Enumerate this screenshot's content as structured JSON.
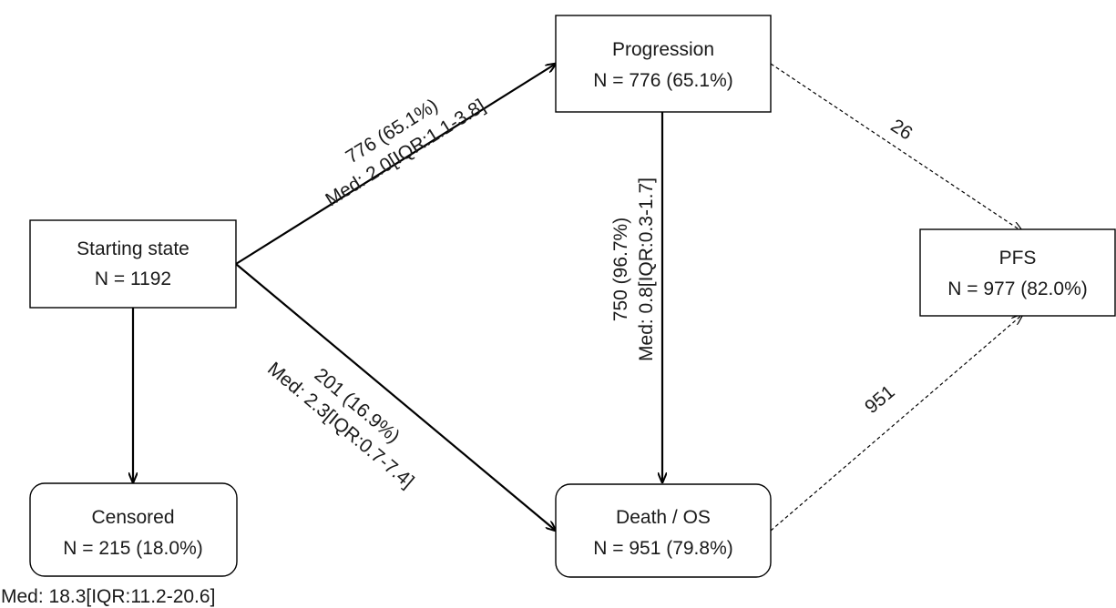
{
  "nodes": {
    "starting": {
      "title": "Starting state",
      "count": "N = 1192"
    },
    "progression": {
      "title": "Progression",
      "count": "N = 776 (65.1%)"
    },
    "pfs": {
      "title": "PFS",
      "count": "N = 977 (82.0%)"
    },
    "censored": {
      "title": "Censored",
      "count": "N = 215 (18.0%)",
      "note": "Med: 18.3[IQR:11.2-20.6]"
    },
    "death": {
      "title": "Death / OS",
      "count": "N = 951 (79.8%)"
    }
  },
  "edges": {
    "start_to_progression": {
      "line1": "776 (65.1%)",
      "line2": "Med: 2.0[IQR:1.1-3.8]"
    },
    "start_to_death": {
      "line1": "201 (16.9%)",
      "line2": "Med: 2.3[IQR:0.7-7.4]"
    },
    "progression_to_death": {
      "line1": "750 (96.7%)",
      "line2": "Med: 0.8[IQR:0.3-1.7]"
    },
    "progression_to_pfs": {
      "label": "26"
    },
    "death_to_pfs": {
      "label": "951"
    }
  }
}
